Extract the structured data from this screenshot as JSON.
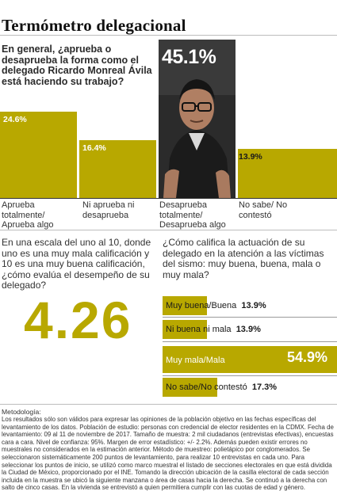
{
  "title": "Termómetro delegacional",
  "q1": {
    "question": "En general, ¿aprueba o desaprueba la forma como el delegado Ricardo Monreal Ávila está haciendo su trabajo?"
  },
  "q2": {
    "question": "En una escala del uno al 10, donde uno  es una muy mala calificación y 10 es una muy buena calificación, ¿cómo evalúa el desempeño de su delegado?",
    "score": "4.26"
  },
  "q3": {
    "question": "¿Cómo califica la actuación de su delegado en la atención a las víctimas del sismo: muy buena, buena, mala o muy mala?"
  },
  "colors": {
    "accent": "#b8a800",
    "photo_bg": "#2a2a2a"
  },
  "chart_data": [
    {
      "type": "bar",
      "categories": [
        "Aprueba totalmente/ Aprueba algo",
        "Ni aprueba ni desaprueba",
        "Desaprueba totalmente/ Desaprueba algo",
        "No sabe/ No contestó"
      ],
      "values": [
        24.6,
        16.4,
        45.1,
        13.9
      ],
      "labels": [
        "24.6%",
        "16.4%",
        "45.1%",
        "13.9%"
      ],
      "ylim": [
        0,
        45.1
      ]
    },
    {
      "type": "bar",
      "orientation": "horizontal",
      "categories": [
        "Muy buena/Buena",
        "Ni buena ni mala",
        "Muy mala/Mala",
        "No sabe/No contestó"
      ],
      "values": [
        13.9,
        13.9,
        54.9,
        17.3
      ],
      "labels": [
        "13.9%",
        "13.9%",
        "54.9%",
        "17.3%"
      ],
      "xlim": [
        0,
        54.9
      ]
    }
  ],
  "methodology": {
    "title": "Metodología:",
    "text": "Los resultados sólo son válidos para expresar las opiniones de la población objetivo en las fechas específicas del levantamiento de los datos. Población de estudio: personas  con credencial de elector residentes en la CDMX. Fecha de levantamiento: 09 al 11 de noviembre de 2017. Tamaño de muestra: 2 mil ciudadanos (entrevistas efectivas), encuestas cara a cara. Nivel de confianza: 95%. Margen de error estadístico: +/- 2.2%. Además pueden existir errores no muestrales no considerados en la estimación anterior.  Método de muestreo: polietápico por conglomerados. Se seleccionaron sistemáticamente 200 puntos de levantamiento, para realizar 10 entrevistas en cada uno. Para seleccionar los puntos de inicio, se utilizó como marco muestral el listado de secciones electorales en que está dividida la Ciudad de México, proporcionado por el INE.  Tomando la dirección ubicación de la casilla electoral de cada sección incluida en la muestra se ubicó la siguiente manzana o área de casas hacia la derecha. Se continuó a la derecha con salto de cinco casas. En la vivienda se entrevistó a quien permitiera cumplir con las cuotas de edad y género."
  }
}
